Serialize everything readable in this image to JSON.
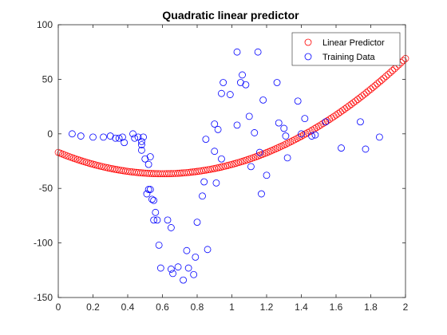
{
  "chart_data": {
    "type": "scatter",
    "title": "Quadratic linear predictor",
    "xlabel": "",
    "ylabel": "",
    "xlim": [
      0,
      2
    ],
    "ylim": [
      -150,
      100
    ],
    "x_ticks": [
      "0",
      "0.2",
      "0.4",
      "0.6",
      "0.8",
      "1",
      "1.2",
      "1.4",
      "1.6",
      "1.8",
      "2"
    ],
    "y_ticks": [
      "-150",
      "-100",
      "-50",
      "0",
      "50",
      "100"
    ],
    "grid": false,
    "legend_position": "top-right",
    "legend": [
      "Linear Predictor",
      "Training Data"
    ],
    "colors": {
      "predictor": "#ff0000",
      "training": "#0000ff",
      "axis": "#262626"
    },
    "series": [
      {
        "name": "Linear Predictor",
        "marker": "circle",
        "color": "#ff0000",
        "x_range": [
          0,
          2
        ],
        "x_step": 0.0125,
        "equation_coefficients": {
          "a": 54,
          "b": -65,
          "c": -17
        }
      },
      {
        "name": "Training Data",
        "marker": "circle",
        "color": "#0000ff",
        "points": [
          [
            0.08,
            0
          ],
          [
            0.13,
            -2
          ],
          [
            0.2,
            -3
          ],
          [
            0.26,
            -3
          ],
          [
            0.3,
            -2
          ],
          [
            0.33,
            -4
          ],
          [
            0.35,
            -4
          ],
          [
            0.37,
            -3
          ],
          [
            0.38,
            -8
          ],
          [
            0.43,
            0
          ],
          [
            0.44,
            -4
          ],
          [
            0.46,
            -3
          ],
          [
            0.48,
            -7
          ],
          [
            0.48,
            -10
          ],
          [
            0.48,
            -15
          ],
          [
            0.49,
            -3
          ],
          [
            0.5,
            -23
          ],
          [
            0.51,
            -55
          ],
          [
            0.52,
            -51
          ],
          [
            0.52,
            -28
          ],
          [
            0.53,
            -21
          ],
          [
            0.53,
            -51
          ],
          [
            0.54,
            -60
          ],
          [
            0.55,
            -61
          ],
          [
            0.55,
            -79
          ],
          [
            0.56,
            -72
          ],
          [
            0.57,
            -79
          ],
          [
            0.58,
            -102
          ],
          [
            0.59,
            -123
          ],
          [
            0.63,
            -79
          ],
          [
            0.65,
            -124
          ],
          [
            0.65,
            -86
          ],
          [
            0.66,
            -128
          ],
          [
            0.69,
            -122
          ],
          [
            0.72,
            -134
          ],
          [
            0.74,
            -107
          ],
          [
            0.75,
            -123
          ],
          [
            0.78,
            -129
          ],
          [
            0.79,
            -113
          ],
          [
            0.8,
            -81
          ],
          [
            0.83,
            -57
          ],
          [
            0.84,
            -44
          ],
          [
            0.85,
            -5
          ],
          [
            0.86,
            -106
          ],
          [
            0.9,
            9
          ],
          [
            0.9,
            -16
          ],
          [
            0.91,
            -45
          ],
          [
            0.92,
            4
          ],
          [
            0.94,
            -23
          ],
          [
            0.94,
            37
          ],
          [
            0.95,
            47
          ],
          [
            0.99,
            36
          ],
          [
            1.03,
            75
          ],
          [
            1.03,
            8
          ],
          [
            1.05,
            47
          ],
          [
            1.06,
            54
          ],
          [
            1.08,
            45
          ],
          [
            1.1,
            16
          ],
          [
            1.11,
            -30
          ],
          [
            1.13,
            1
          ],
          [
            1.15,
            75
          ],
          [
            1.16,
            -17
          ],
          [
            1.17,
            -55
          ],
          [
            1.18,
            31
          ],
          [
            1.2,
            -38
          ],
          [
            1.26,
            47
          ],
          [
            1.27,
            10
          ],
          [
            1.3,
            5
          ],
          [
            1.31,
            -2
          ],
          [
            1.32,
            -22
          ],
          [
            1.38,
            30
          ],
          [
            1.4,
            0
          ],
          [
            1.42,
            14
          ],
          [
            1.46,
            -2
          ],
          [
            1.48,
            -1
          ],
          [
            1.54,
            11
          ],
          [
            1.63,
            -13
          ],
          [
            1.74,
            11
          ],
          [
            1.77,
            -14
          ],
          [
            1.85,
            -3
          ]
        ]
      }
    ]
  }
}
